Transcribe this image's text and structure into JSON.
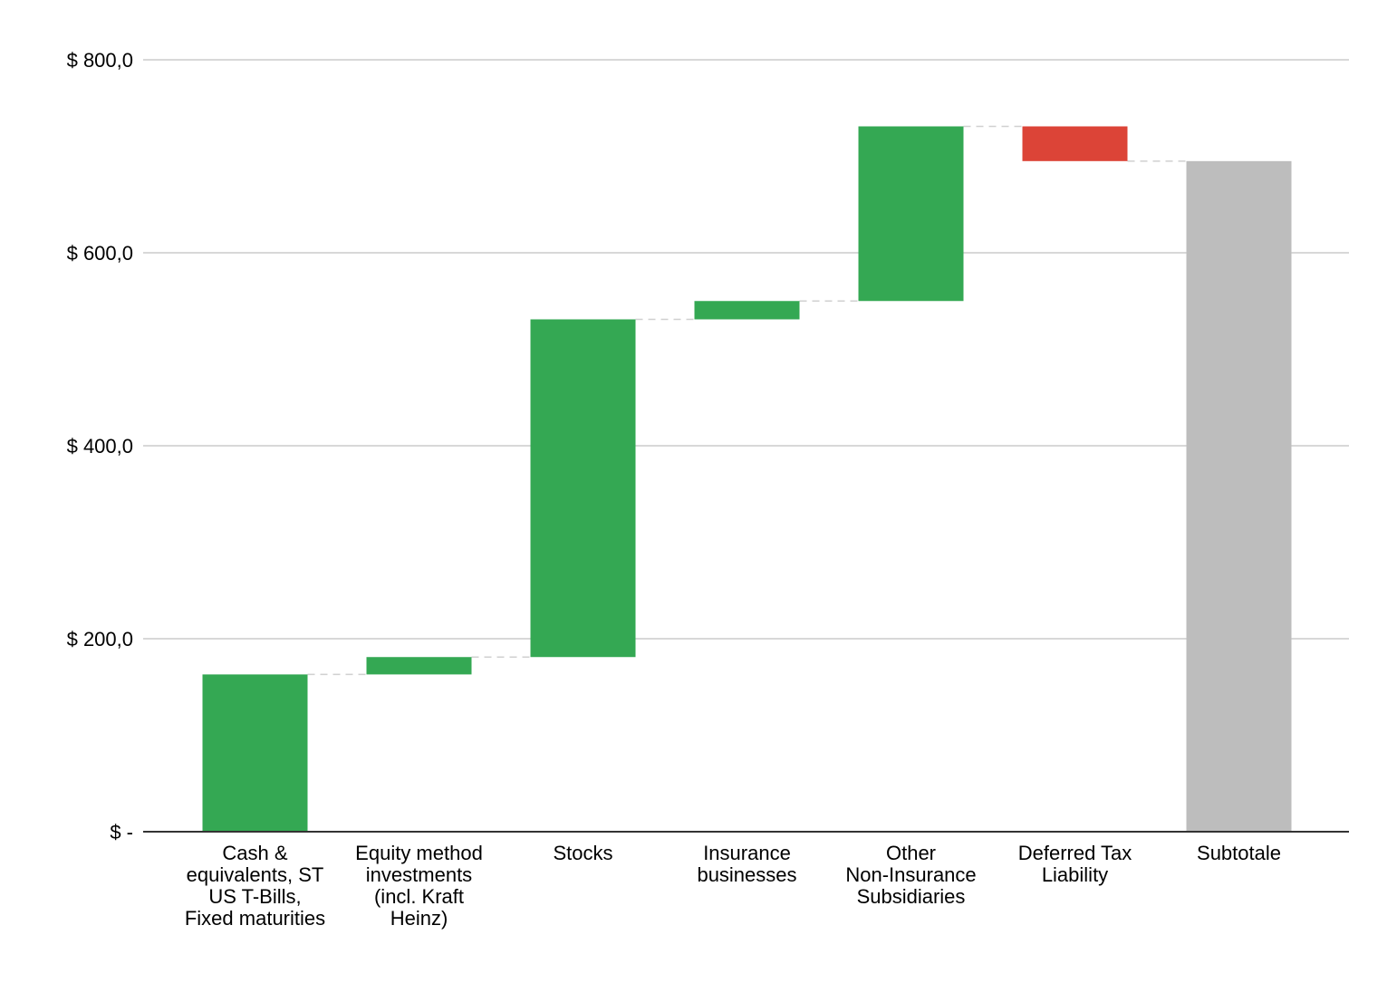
{
  "chart_data": {
    "type": "bar",
    "subtype": "waterfall",
    "categories": [
      "Cash & equivalents, ST US T-Bills, Fixed maturities",
      "Equity method investments (incl. Kraft Heinz)",
      "Stocks",
      "Insurance businesses",
      "Other Non-Insurance Subsidiaries",
      "Deferred Tax Liability",
      "Subtotale"
    ],
    "category_lines": [
      [
        "Cash &",
        "equivalents, ST",
        "US T-Bills,",
        "Fixed maturities"
      ],
      [
        "Equity method",
        "investments",
        "(incl. Kraft",
        "Heinz)"
      ],
      [
        "Stocks"
      ],
      [
        "Insurance",
        "businesses"
      ],
      [
        "Other",
        "Non-Insurance",
        "Subsidiaries"
      ],
      [
        "Deferred Tax",
        "Liability"
      ],
      [
        "Subtotale"
      ]
    ],
    "values": [
      163,
      18,
      350,
      19,
      181,
      -36,
      695
    ],
    "bar_kinds": [
      "increase",
      "increase",
      "increase",
      "increase",
      "increase",
      "decrease",
      "total"
    ],
    "ylim": [
      0,
      800
    ],
    "yticks": [
      0,
      200,
      400,
      600,
      800
    ],
    "ytick_labels": [
      "$ -",
      "$ 200,0",
      "$ 400,0",
      "$ 600,0",
      "$ 800,0"
    ],
    "grid": true,
    "title": "",
    "xlabel": "",
    "ylabel": "",
    "colors": {
      "increase": "#34a853",
      "decrease": "#dc4437",
      "total": "#bdbdbd",
      "grid": "#cccccc",
      "connector": "#d0d0d0"
    }
  }
}
